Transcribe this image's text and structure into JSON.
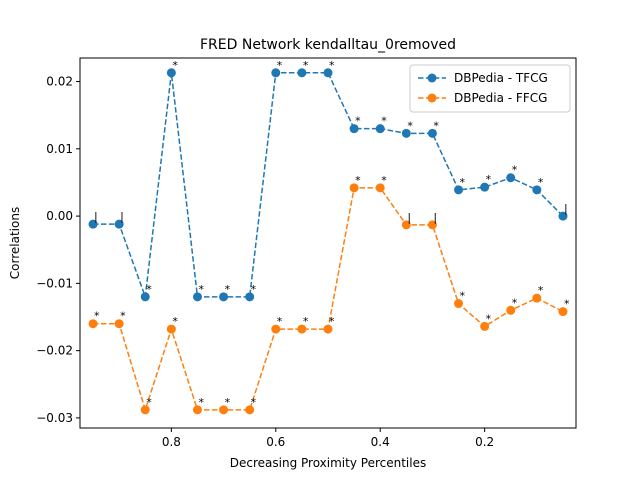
{
  "chart_data": {
    "type": "line",
    "title": "FRED Network kendalltau_0removed",
    "xlabel": "Decreasing Proximity Percentiles",
    "ylabel": "Correlations",
    "xlim": [
      0.975,
      0.025
    ],
    "ylim": [
      -0.0315,
      0.0235
    ],
    "xticks": [
      0.8,
      0.6,
      0.4,
      0.2
    ],
    "xtick_labels": [
      "0.8",
      "0.6",
      "0.4",
      "0.2"
    ],
    "yticks": [
      -0.03,
      -0.02,
      -0.01,
      0.0,
      0.01,
      0.02
    ],
    "ytick_labels": [
      "−0.03",
      "−0.02",
      "−0.01",
      "0.00",
      "0.01",
      "0.02"
    ],
    "grid": false,
    "legend_position": "top-right",
    "x": [
      0.95,
      0.9,
      0.85,
      0.8,
      0.75,
      0.7,
      0.65,
      0.6,
      0.55,
      0.5,
      0.45,
      0.4,
      0.35,
      0.3,
      0.25,
      0.2,
      0.15,
      0.1,
      0.05
    ],
    "series": [
      {
        "name": "DBPedia - TFCG",
        "color": "#1f77b4",
        "values": [
          -0.0012,
          -0.0012,
          -0.012,
          0.0213,
          -0.012,
          -0.012,
          -0.012,
          0.0213,
          0.0213,
          0.0213,
          0.013,
          0.013,
          0.0123,
          0.0123,
          0.0039,
          0.0043,
          0.0057,
          0.0039,
          0.0
        ],
        "annotations": [
          "|",
          "|",
          "*",
          "*",
          "*",
          "*",
          "*",
          "*",
          "*",
          "*",
          "*",
          "*",
          "*",
          "*",
          "*",
          "*",
          "*",
          "*",
          "|"
        ]
      },
      {
        "name": "DBPedia - FFCG",
        "color": "#ff7f0e",
        "values": [
          -0.016,
          -0.016,
          -0.0288,
          -0.0168,
          -0.0288,
          -0.0288,
          -0.0288,
          -0.0168,
          -0.0168,
          -0.0168,
          0.0042,
          0.0042,
          -0.0013,
          -0.0013,
          -0.013,
          -0.0164,
          -0.014,
          -0.0122,
          -0.0142
        ],
        "annotations": [
          "*",
          "*",
          "*",
          "*",
          "*",
          "*",
          "*",
          "*",
          "*",
          "*",
          "*",
          "*",
          "|",
          "|",
          "*",
          "*",
          "*",
          "*",
          "*"
        ]
      }
    ]
  }
}
